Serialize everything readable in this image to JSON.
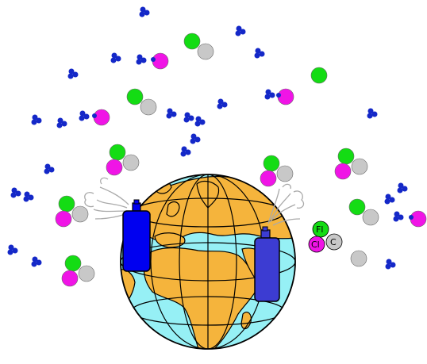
{
  "colors": {
    "ocean": "#96f0f5",
    "land": "#f5b43c",
    "outline": "#000000",
    "ozone": "#1428c8",
    "fluorine": "#14dc14",
    "chlorine": "#f014e6",
    "carbon": "#c8c8c8",
    "can_left": "#0000f0",
    "can_right": "#3c3cd2",
    "spray": "#aaaaaa"
  },
  "molecule_labels": {
    "fluorine": "Fl",
    "chlorine": "Cl",
    "carbon": "C"
  },
  "icons": [
    "globe-icon",
    "aerosol-can-icon",
    "spray-plume-icon",
    "ozone-molecule-icon",
    "cfc-molecule-icon",
    "chlorine-atom-icon",
    "fluorine-atom-icon",
    "carbon-atom-icon"
  ]
}
